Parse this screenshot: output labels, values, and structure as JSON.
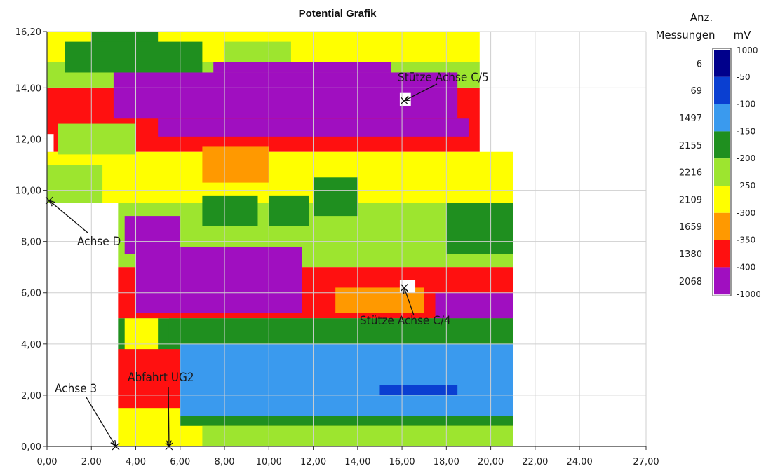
{
  "chart_data": {
    "type": "heatmap",
    "title": "Potential Grafik",
    "xlabel": "",
    "ylabel": "",
    "xlim": [
      0,
      27
    ],
    "ylim": [
      0,
      16.2
    ],
    "x_ticks": [
      "0,00",
      "2,00",
      "4,00",
      "6,00",
      "8,00",
      "10,00",
      "12,00",
      "14,00",
      "16,00",
      "18,00",
      "20,00",
      "22,00",
      "24,00",
      "27,00"
    ],
    "x_tick_values": [
      0,
      2,
      4,
      6,
      8,
      10,
      12,
      14,
      16,
      18,
      20,
      22,
      24,
      27
    ],
    "y_ticks": [
      "0,00",
      "2,00",
      "4,00",
      "6,00",
      "8,00",
      "10,00",
      "12,00",
      "14,00",
      "16,20"
    ],
    "y_tick_values": [
      0,
      2,
      4,
      6,
      8,
      10,
      12,
      14,
      16.2
    ],
    "grid": true,
    "legend": {
      "position": "right",
      "count_header": [
        "Anz.",
        "Messungen"
      ],
      "unit": "mV",
      "top_label": "1000",
      "bins": [
        {
          "upper": "1000",
          "lower": "-50",
          "count": "6",
          "color": "#00008b"
        },
        {
          "upper": "-50",
          "lower": "-100",
          "count": "69",
          "color": "#0a3fd1"
        },
        {
          "upper": "-100",
          "lower": "-150",
          "count": "1497",
          "color": "#3a9aee"
        },
        {
          "upper": "-150",
          "lower": "-200",
          "count": "2155",
          "color": "#1f8f1f"
        },
        {
          "upper": "-200",
          "lower": "-250",
          "count": "2216",
          "color": "#9de52f"
        },
        {
          "upper": "-250",
          "lower": "-300",
          "count": "2109",
          "color": "#ffff00"
        },
        {
          "upper": "-300",
          "lower": "-350",
          "count": "1659",
          "color": "#ff9900"
        },
        {
          "upper": "-350",
          "lower": "-400",
          "count": "1380",
          "color": "#ff1010"
        },
        {
          "upper": "-400",
          "lower": "-1000",
          "count": "2068",
          "color": "#a00fc0"
        }
      ]
    },
    "regions": [
      {
        "x0": 0,
        "x1": 19.5,
        "y0": 15.0,
        "y1": 16.2,
        "bin": 5
      },
      {
        "x0": 0,
        "x1": 19.5,
        "y0": 14.0,
        "y1": 15.0,
        "bin": 4
      },
      {
        "x0": 0,
        "x1": 19.5,
        "y0": 11.5,
        "y1": 14.0,
        "bin": 7
      },
      {
        "x0": 0,
        "x1": 21.0,
        "y0": 9.5,
        "y1": 11.5,
        "bin": 5
      },
      {
        "x0": 3.2,
        "x1": 21.0,
        "y0": 7.0,
        "y1": 9.5,
        "bin": 4
      },
      {
        "x0": 3.2,
        "x1": 21.0,
        "y0": 5.0,
        "y1": 7.0,
        "bin": 7
      },
      {
        "x0": 3.2,
        "x1": 21.0,
        "y0": 2.0,
        "y1": 5.0,
        "bin": 3
      },
      {
        "x0": 3.2,
        "x1": 21.0,
        "y0": 0.0,
        "y1": 2.0,
        "bin": 5
      },
      {
        "x0": 2.0,
        "x1": 5.0,
        "y0": 15.2,
        "y1": 16.2,
        "bin": 3
      },
      {
        "x0": 0.8,
        "x1": 7.0,
        "y0": 14.6,
        "y1": 15.8,
        "bin": 3
      },
      {
        "x0": 8.0,
        "x1": 11.0,
        "y0": 14.6,
        "y1": 15.8,
        "bin": 4
      },
      {
        "x0": 3.0,
        "x1": 18.5,
        "y0": 12.8,
        "y1": 14.6,
        "bin": 8
      },
      {
        "x0": 5.0,
        "x1": 19.0,
        "y0": 12.1,
        "y1": 12.8,
        "bin": 8
      },
      {
        "x0": 7.5,
        "x1": 15.5,
        "y0": 14.6,
        "y1": 15.0,
        "bin": 8
      },
      {
        "x0": 0.5,
        "x1": 4.0,
        "y0": 11.4,
        "y1": 12.6,
        "bin": 4
      },
      {
        "x0": 7.0,
        "x1": 10.0,
        "y0": 10.3,
        "y1": 11.7,
        "bin": 6
      },
      {
        "x0": 0.0,
        "x1": 2.5,
        "y0": 9.4,
        "y1": 11.0,
        "bin": 4
      },
      {
        "x0": 7.0,
        "x1": 9.5,
        "y0": 8.6,
        "y1": 9.8,
        "bin": 3
      },
      {
        "x0": 10.0,
        "x1": 11.8,
        "y0": 8.6,
        "y1": 9.8,
        "bin": 3
      },
      {
        "x0": 12.0,
        "x1": 14.0,
        "y0": 9.0,
        "y1": 10.5,
        "bin": 3
      },
      {
        "x0": 18.0,
        "x1": 21.0,
        "y0": 7.5,
        "y1": 9.5,
        "bin": 3
      },
      {
        "x0": 3.5,
        "x1": 6.0,
        "y0": 7.5,
        "y1": 9.0,
        "bin": 8
      },
      {
        "x0": 4.0,
        "x1": 11.5,
        "y0": 5.2,
        "y1": 7.8,
        "bin": 8
      },
      {
        "x0": 17.5,
        "x1": 21.0,
        "y0": 5.0,
        "y1": 6.0,
        "bin": 8
      },
      {
        "x0": 13.0,
        "x1": 17.0,
        "y0": 5.2,
        "y1": 6.2,
        "bin": 6
      },
      {
        "x0": 5.5,
        "x1": 21.0,
        "y0": 4.0,
        "y1": 5.0,
        "bin": 3
      },
      {
        "x0": 6.0,
        "x1": 21.0,
        "y0": 1.2,
        "y1": 4.0,
        "bin": 2
      },
      {
        "x0": 3.2,
        "x1": 6.0,
        "y0": 1.5,
        "y1": 3.8,
        "bin": 7
      },
      {
        "x0": 3.5,
        "x1": 5.0,
        "y0": 3.8,
        "y1": 5.0,
        "bin": 5
      },
      {
        "x0": 6.0,
        "x1": 21.0,
        "y0": 0.8,
        "y1": 1.2,
        "bin": 3
      },
      {
        "x0": 7.0,
        "x1": 21.0,
        "y0": 0.0,
        "y1": 0.8,
        "bin": 4
      },
      {
        "x0": 15.0,
        "x1": 18.5,
        "y0": 2.0,
        "y1": 2.4,
        "bin": 1
      }
    ],
    "white_patches": [
      {
        "x0": 0.0,
        "x1": 3.2,
        "y0": 0.0,
        "y1": 9.5
      },
      {
        "x0": 0.0,
        "x1": 0.3,
        "y0": 11.5,
        "y1": 12.2
      },
      {
        "x0": 15.9,
        "x1": 16.4,
        "y0": 13.3,
        "y1": 13.8
      },
      {
        "x0": 15.9,
        "x1": 16.6,
        "y0": 6.0,
        "y1": 6.5
      }
    ],
    "annotations": [
      {
        "text": "Stütze Achse C/5",
        "target": [
          16.1,
          13.5
        ]
      },
      {
        "text": "Achse D",
        "target": [
          0.1,
          9.6
        ]
      },
      {
        "text": "Stütze Achse C/4",
        "target": [
          16.1,
          6.2
        ]
      },
      {
        "text": "Achse 3",
        "target": [
          3.1,
          0.0
        ]
      },
      {
        "text": "Abfahrt UG2",
        "target": [
          5.5,
          0.0
        ]
      }
    ]
  }
}
